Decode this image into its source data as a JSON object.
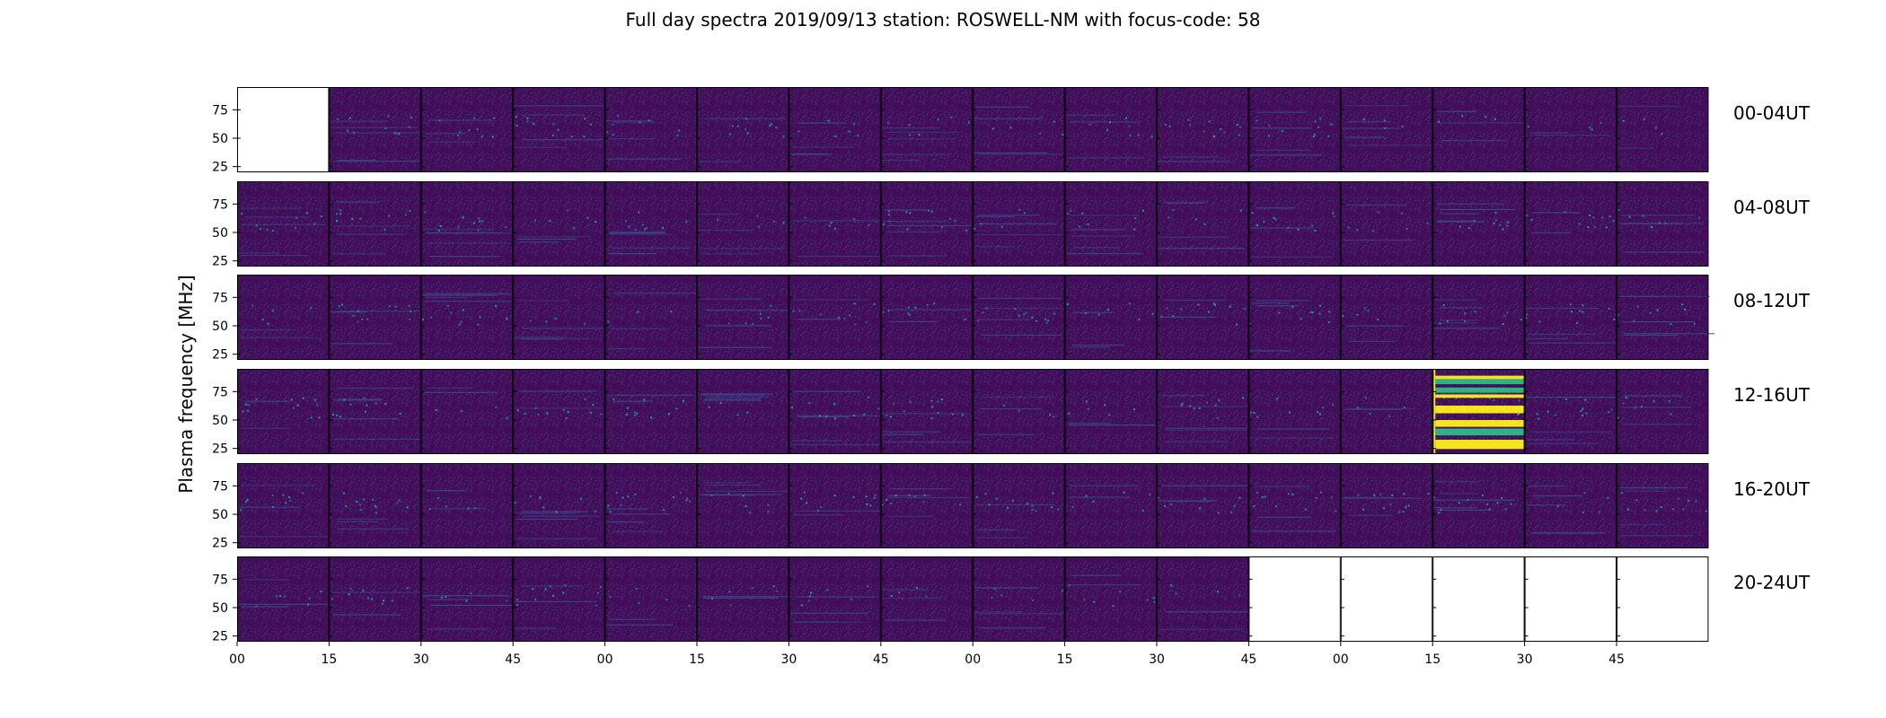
{
  "chart_data": {
    "type": "heatmap",
    "title": "Full day spectra 2019/09/13 station: ROSWELL-NM with focus-code: 58",
    "ylabel": "Plasma frequency [MHz]",
    "xlabel": "",
    "y_ticks": [
      "25",
      "50",
      "75"
    ],
    "x_ticks": [
      "00",
      "15",
      "30",
      "45",
      "00",
      "15",
      "30",
      "45",
      "00",
      "15",
      "30",
      "45",
      "00",
      "15",
      "30",
      "45"
    ],
    "colormap": "viridis",
    "panels_per_row": 16,
    "rows": [
      {
        "label": "00-04UT",
        "panels": [
          "empty",
          "data",
          "data",
          "data",
          "data",
          "data",
          "data",
          "data",
          "data",
          "data",
          "data",
          "data",
          "data",
          "data",
          "data",
          "data"
        ]
      },
      {
        "label": "04-08UT",
        "panels": [
          "data",
          "data",
          "data",
          "data",
          "data",
          "data",
          "data",
          "data",
          "data",
          "data",
          "data",
          "data",
          "data",
          "data",
          "data",
          "data"
        ]
      },
      {
        "label": "08-12UT",
        "panels": [
          "data",
          "data",
          "data",
          "data",
          "data",
          "data",
          "data",
          "data",
          "data",
          "data",
          "data",
          "data",
          "data",
          "data",
          "data",
          "data"
        ]
      },
      {
        "label": "12-16UT",
        "panels": [
          "data",
          "data",
          "data",
          "data",
          "data",
          "data",
          "data",
          "data",
          "data",
          "data",
          "data",
          "data",
          "data",
          "strong",
          "data",
          "data"
        ]
      },
      {
        "label": "16-20UT",
        "panels": [
          "data",
          "data",
          "data",
          "data",
          "data",
          "data",
          "data",
          "data",
          "data",
          "data",
          "data",
          "data",
          "data",
          "data",
          "data",
          "data"
        ]
      },
      {
        "label": "20-24UT",
        "panels": [
          "data",
          "data",
          "data",
          "data",
          "data",
          "data",
          "data",
          "data",
          "data",
          "data",
          "data",
          "empty",
          "empty",
          "empty",
          "empty",
          "empty"
        ]
      }
    ],
    "colors": {
      "background": "#440d5a",
      "noise": "#3b4c8b",
      "speckle": "#26a1a0",
      "strong_yellow": "#f5e41e",
      "strong_green": "#2fb382",
      "frame": "#000000"
    }
  }
}
